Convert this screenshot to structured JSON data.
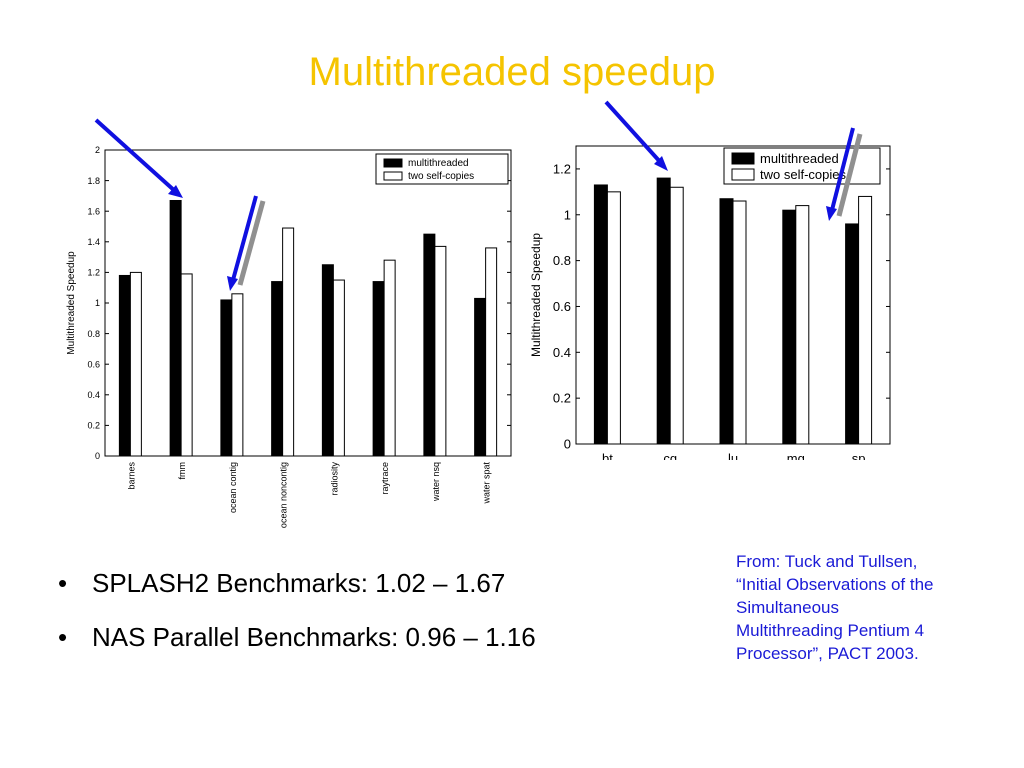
{
  "title": "Multithreaded speedup",
  "bullets": [
    "SPLASH2 Benchmarks: 1.02 – 1.67",
    "NAS Parallel Benchmarks: 0.96 – 1.16"
  ],
  "citation": [
    "From: Tuck and Tullsen,",
    "“Initial Observations of the",
    "Simultaneous",
    "Multithreading Pentium 4",
    "Processor”, PACT 2003."
  ],
  "colors": {
    "title": "#f5c400",
    "citation": "#1a1ad6",
    "arrow_blue": "#1010e0",
    "arrow_gray": "#909090"
  },
  "chart_data": [
    {
      "type": "bar",
      "ylabel": "Multithreaded Speedup",
      "ylim": [
        0,
        2
      ],
      "yticks": [
        0,
        0.2,
        0.4,
        0.6,
        0.8,
        1,
        1.2,
        1.4,
        1.6,
        1.8,
        2
      ],
      "ytick_labels": [
        "0",
        "0.2",
        "0.4",
        "0.6",
        "0.8",
        "1",
        "1.2",
        "1.4",
        "1.6",
        "1.8",
        "2"
      ],
      "categories": [
        "barnes",
        "fmm",
        "ocean contig",
        "ocean noncontig",
        "radiosity",
        "raytrace",
        "water nsq",
        "water spat"
      ],
      "series": [
        {
          "name": "multithreaded",
          "values": [
            1.18,
            1.67,
            1.02,
            1.14,
            1.25,
            1.14,
            1.45,
            1.03
          ]
        },
        {
          "name": "two self-copies",
          "values": [
            1.2,
            1.19,
            1.06,
            1.49,
            1.15,
            1.28,
            1.37,
            1.36
          ]
        }
      ],
      "legend_position": "top-right",
      "grid": false
    },
    {
      "type": "bar",
      "ylabel": "Multithreaded Speedup",
      "ylim": [
        0,
        1.3
      ],
      "yticks": [
        0,
        0.2,
        0.4,
        0.6,
        0.8,
        1,
        1.2
      ],
      "ytick_labels": [
        "0",
        "0.2",
        "0.4",
        "0.6",
        "0.8",
        "1",
        "1.2"
      ],
      "categories": [
        "bt",
        "cg",
        "lu",
        "mg",
        "sp"
      ],
      "series": [
        {
          "name": "multithreaded",
          "values": [
            1.13,
            1.16,
            1.07,
            1.02,
            0.96
          ]
        },
        {
          "name": "two self-copies",
          "values": [
            1.1,
            1.12,
            1.06,
            1.04,
            1.08
          ]
        }
      ],
      "legend_position": "top-right",
      "grid": false
    }
  ]
}
